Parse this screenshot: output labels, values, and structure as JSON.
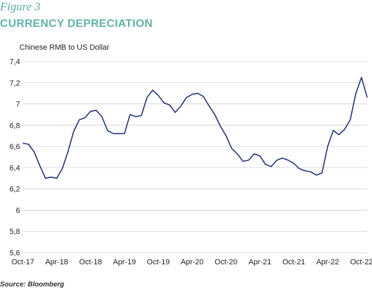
{
  "figure_label": "Figure 3",
  "title": "CURRENCY DEPRECIATION",
  "source": "Source: Bloomberg",
  "chart_data": {
    "type": "line",
    "title": "CURRENCY DEPRECIATION",
    "ylabel": "Chinese RMB to US Dollar",
    "xlabel": "",
    "ylim": [
      5.6,
      7.4
    ],
    "yticks": [
      5.6,
      5.8,
      6,
      6.2,
      6.4,
      6.6,
      6.8,
      7,
      7.2,
      7.4
    ],
    "ytick_labels": [
      "5,6",
      "5,8",
      "6",
      "6,2",
      "6,4",
      "6,6",
      "6,8",
      "7",
      "7,2",
      "7,4"
    ],
    "xlim": [
      "2017-10",
      "2022-11"
    ],
    "xticks": [
      "2017-10",
      "2018-04",
      "2018-10",
      "2019-04",
      "2019-10",
      "2020-04",
      "2020-10",
      "2021-04",
      "2021-10",
      "2022-04",
      "2022-10"
    ],
    "xtick_labels": [
      "Oct-17",
      "Apr-18",
      "Oct-18",
      "Apr-19",
      "Oct-19",
      "Apr-20",
      "Oct-20",
      "Apr-21",
      "Oct-21",
      "Apr-22",
      "Oct-22"
    ],
    "grid": "horizontal",
    "color": "#26337a",
    "series": [
      {
        "x": [
          "2017-10",
          "2017-11",
          "2017-12",
          "2018-01",
          "2018-02",
          "2018-03",
          "2018-04",
          "2018-05",
          "2018-06",
          "2018-07",
          "2018-08",
          "2018-09",
          "2018-10",
          "2018-11",
          "2018-12",
          "2019-01",
          "2019-02",
          "2019-03",
          "2019-04",
          "2019-05",
          "2019-06",
          "2019-07",
          "2019-08",
          "2019-09",
          "2019-10",
          "2019-11",
          "2019-12",
          "2020-01",
          "2020-02",
          "2020-03",
          "2020-04",
          "2020-05",
          "2020-06",
          "2020-07",
          "2020-08",
          "2020-09",
          "2020-10",
          "2020-11",
          "2020-12",
          "2021-01",
          "2021-02",
          "2021-03",
          "2021-04",
          "2021-05",
          "2021-06",
          "2021-07",
          "2021-08",
          "2021-09",
          "2021-10",
          "2021-11",
          "2021-12",
          "2022-01",
          "2022-02",
          "2022-03",
          "2022-04",
          "2022-05",
          "2022-06",
          "2022-07",
          "2022-08",
          "2022-09",
          "2022-10",
          "2022-11"
        ],
        "values": [
          6.63,
          6.62,
          6.55,
          6.42,
          6.3,
          6.31,
          6.3,
          6.39,
          6.55,
          6.74,
          6.85,
          6.87,
          6.93,
          6.94,
          6.88,
          6.75,
          6.72,
          6.72,
          6.72,
          6.9,
          6.88,
          6.89,
          7.06,
          7.13,
          7.08,
          7.01,
          6.99,
          6.92,
          6.98,
          7.06,
          7.09,
          7.1,
          7.07,
          6.98,
          6.9,
          6.79,
          6.7,
          6.58,
          6.53,
          6.46,
          6.47,
          6.53,
          6.51,
          6.43,
          6.41,
          6.47,
          6.49,
          6.47,
          6.44,
          6.39,
          6.37,
          6.36,
          6.33,
          6.35,
          6.6,
          6.75,
          6.71,
          6.76,
          6.85,
          7.1,
          7.25,
          7.06
        ]
      }
    ]
  }
}
